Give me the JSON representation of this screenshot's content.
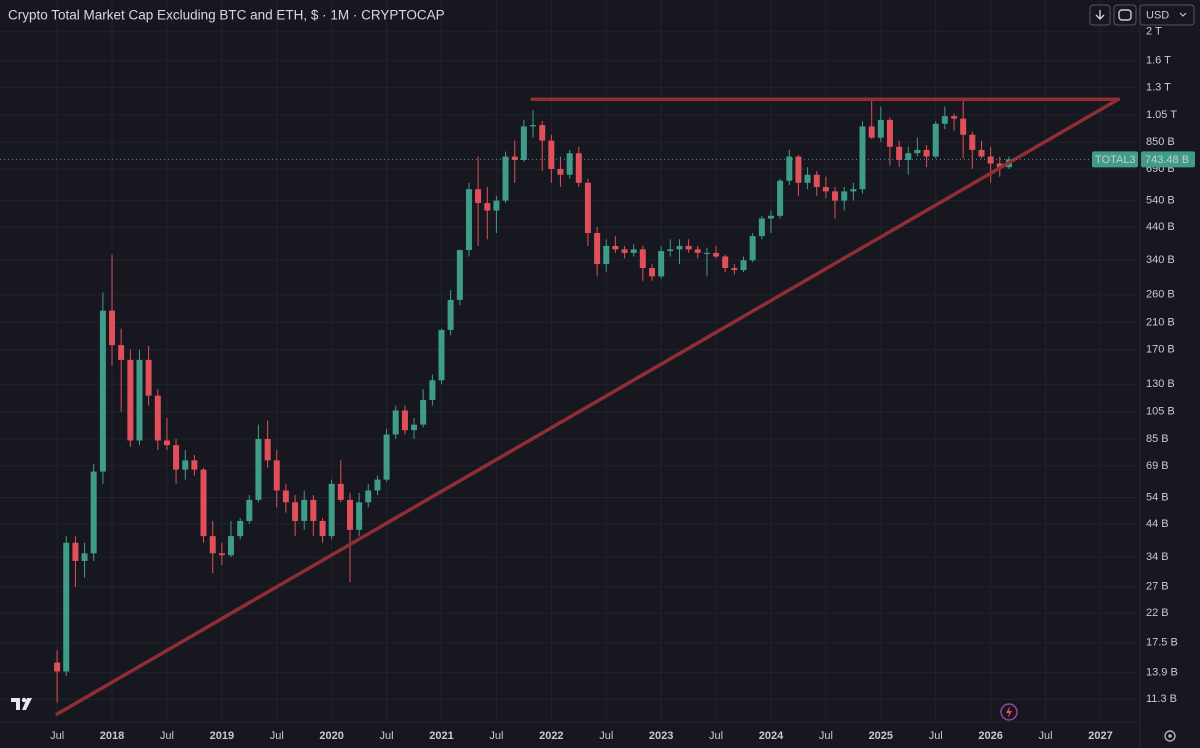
{
  "chart_data": {
    "type": "candlestick",
    "title": "Crypto Total Market Cap Excluding BTC and ETH, $ · 1M · CRYPTOCAP",
    "currency": "USD",
    "symbol": "TOTAL3",
    "last_price": {
      "value": 743.48,
      "label": "743.48 B"
    },
    "log_scale": true,
    "grid": true,
    "up_color": "#3f9c88",
    "down_color": "#e0505a",
    "trendline_color": "#8f2f34",
    "x": [
      2017.5,
      2017.583,
      2017.667,
      2017.75,
      2017.833,
      2017.917,
      2018,
      2018.083,
      2018.167,
      2018.25,
      2018.333,
      2018.417,
      2018.5,
      2018.583,
      2018.667,
      2018.75,
      2018.833,
      2018.917,
      2019,
      2019.083,
      2019.167,
      2019.25,
      2019.333,
      2019.417,
      2019.5,
      2019.583,
      2019.667,
      2019.75,
      2019.833,
      2019.917,
      2020,
      2020.083,
      2020.167,
      2020.25,
      2020.333,
      2020.417,
      2020.5,
      2020.583,
      2020.667,
      2020.75,
      2020.833,
      2020.917,
      2021,
      2021.083,
      2021.167,
      2021.25,
      2021.333,
      2021.417,
      2021.5,
      2021.583,
      2021.667,
      2021.75,
      2021.833,
      2021.917,
      2022,
      2022.083,
      2022.167,
      2022.25,
      2022.333,
      2022.417,
      2022.5,
      2022.583,
      2022.667,
      2022.75,
      2022.833,
      2022.917,
      2023,
      2023.083,
      2023.167,
      2023.25,
      2023.333,
      2023.417,
      2023.5,
      2023.583,
      2023.667,
      2023.75,
      2023.833,
      2023.917,
      2024,
      2024.083,
      2024.167,
      2024.25,
      2024.333,
      2024.417,
      2024.5,
      2024.583,
      2024.667,
      2024.75,
      2024.833,
      2024.917,
      2025,
      2025.083,
      2025.167,
      2025.25,
      2025.333,
      2025.417,
      2025.5,
      2025.583,
      2025.667,
      2025.75,
      2025.833,
      2025.917,
      2026,
      2026.083,
      2026.167
    ],
    "open": [
      15,
      14,
      38,
      33,
      35,
      66,
      230,
      176,
      157,
      84,
      157,
      119,
      84,
      81,
      67,
      72,
      67,
      40,
      35,
      34.5,
      40,
      45,
      53,
      85,
      72,
      57,
      52,
      45,
      53,
      45,
      40,
      60,
      53,
      42,
      52,
      57,
      62,
      88,
      106,
      91,
      95,
      115,
      134,
      198,
      250,
      368,
      590,
      530,
      500,
      540,
      760,
      740,
      960,
      970,
      860,
      690,
      660,
      780,
      620,
      420,
      330,
      380,
      370,
      360,
      370,
      320,
      300,
      365,
      370,
      380,
      370,
      360,
      360,
      350,
      320,
      315,
      340,
      410,
      470,
      480,
      630,
      760,
      620,
      660,
      600,
      580,
      540,
      580,
      590,
      960,
      880,
      1010,
      820,
      740,
      780,
      800,
      760,
      980,
      1040,
      1020,
      900,
      800,
      760,
      720,
      700
    ],
    "high": [
      16.5,
      40,
      40,
      38,
      70,
      265,
      355,
      200,
      170,
      170,
      175,
      125,
      100,
      85,
      78,
      75,
      68,
      45,
      38,
      45,
      46,
      55,
      95,
      98,
      78,
      60,
      55,
      57,
      55,
      46,
      62,
      72,
      56,
      56,
      60,
      64,
      92,
      110,
      110,
      100,
      125,
      140,
      200,
      270,
      370,
      620,
      760,
      600,
      560,
      790,
      860,
      1010,
      1090,
      1000,
      900,
      760,
      800,
      820,
      640,
      440,
      400,
      410,
      380,
      385,
      380,
      330,
      380,
      400,
      400,
      400,
      380,
      375,
      380,
      355,
      330,
      350,
      420,
      480,
      500,
      640,
      800,
      770,
      700,
      680,
      650,
      600,
      600,
      620,
      1000,
      1180,
      1120,
      1030,
      860,
      820,
      880,
      830,
      1000,
      1120,
      1060,
      1200,
      920,
      860,
      820,
      760,
      760
    ],
    "low": [
      11,
      13.5,
      27,
      29,
      33,
      60,
      150,
      105,
      80,
      81,
      110,
      78,
      78,
      60,
      62,
      64,
      38,
      30,
      32,
      34,
      39,
      44,
      52,
      68,
      50,
      48,
      40,
      42,
      40,
      38,
      39,
      52,
      28,
      40,
      50,
      55,
      61,
      85,
      88,
      85,
      93,
      110,
      130,
      190,
      240,
      350,
      380,
      400,
      420,
      530,
      620,
      730,
      880,
      680,
      620,
      600,
      640,
      600,
      380,
      300,
      310,
      360,
      345,
      350,
      290,
      290,
      295,
      350,
      330,
      360,
      345,
      300,
      345,
      310,
      305,
      310,
      335,
      400,
      420,
      470,
      610,
      560,
      590,
      560,
      550,
      470,
      500,
      540,
      570,
      870,
      850,
      710,
      700,
      660,
      760,
      700,
      750,
      940,
      930,
      750,
      690,
      750,
      620,
      650,
      690
    ],
    "close": [
      14,
      38,
      33,
      35,
      66,
      230,
      176,
      157,
      84,
      157,
      119,
      84,
      81,
      67,
      72,
      67,
      40,
      35,
      34.5,
      40,
      45,
      53,
      85,
      72,
      57,
      52,
      45,
      53,
      45,
      40,
      60,
      53,
      42,
      52,
      57,
      62,
      88,
      106,
      91,
      95,
      115,
      134,
      198,
      250,
      368,
      590,
      530,
      500,
      540,
      760,
      740,
      960,
      970,
      860,
      690,
      660,
      780,
      620,
      420,
      330,
      380,
      370,
      360,
      370,
      320,
      300,
      365,
      370,
      380,
      370,
      360,
      360,
      350,
      320,
      315,
      340,
      410,
      470,
      480,
      630,
      760,
      620,
      660,
      600,
      580,
      540,
      580,
      590,
      960,
      880,
      1010,
      820,
      740,
      780,
      800,
      760,
      980,
      1040,
      1020,
      900,
      800,
      760,
      720,
      700,
      743.48
    ],
    "trendlines": [
      {
        "x": [
          2021.826,
          2027.163
        ],
        "y": [
          1185,
          1185
        ]
      },
      {
        "x": [
          2017.5,
          2027.163
        ],
        "y": [
          10.06,
          1185
        ]
      }
    ],
    "xlim": [
      2016.98,
      2027.36
    ],
    "ylim": [
      9.46,
      2560
    ],
    "xticks": [
      {
        "value": 2017.5,
        "label": "Jul"
      },
      2018,
      {
        "value": 2018.5,
        "label": "Jul"
      },
      2019,
      {
        "value": 2019.5,
        "label": "Jul"
      },
      2020,
      {
        "value": 2020.5,
        "label": "Jul"
      },
      2021,
      {
        "value": 2021.5,
        "label": "Jul"
      },
      2022,
      {
        "value": 2022.5,
        "label": "Jul"
      },
      2023,
      {
        "value": 2023.5,
        "label": "Jul"
      },
      2024,
      {
        "value": 2024.5,
        "label": "Jul"
      },
      2025,
      {
        "value": 2025.5,
        "label": "Jul"
      },
      2026,
      {
        "value": 2026.5,
        "label": "Jul"
      },
      2027
    ],
    "yticks": [
      {
        "value": 2000,
        "label": "2 T"
      },
      {
        "value": 1600,
        "label": "1.6 T"
      },
      {
        "value": 1300,
        "label": "1.3 T"
      },
      {
        "value": 1050,
        "label": "1.05 T"
      },
      {
        "value": 850,
        "label": "850 B"
      },
      {
        "value": 690,
        "label": "690 B"
      },
      {
        "value": 540,
        "label": "540 B"
      },
      {
        "value": 440,
        "label": "440 B"
      },
      {
        "value": 340,
        "label": "340 B"
      },
      {
        "value": 260,
        "label": "260 B"
      },
      {
        "value": 210,
        "label": "210 B"
      },
      {
        "value": 170,
        "label": "170 B"
      },
      {
        "value": 130,
        "label": "130 B"
      },
      {
        "value": 105,
        "label": "105 B"
      },
      {
        "value": 85,
        "label": "85 B"
      },
      {
        "value": 69,
        "label": "69 B"
      },
      {
        "value": 54,
        "label": "54 B"
      },
      {
        "value": 44,
        "label": "44 B"
      },
      {
        "value": 34,
        "label": "34 B"
      },
      {
        "value": 27,
        "label": "27 B"
      },
      {
        "value": 22,
        "label": "22 B"
      },
      {
        "value": 17.5,
        "label": "17.5 B"
      },
      {
        "value": 13.9,
        "label": "13.9 B"
      },
      {
        "value": 11.3,
        "label": "11.3 B"
      }
    ]
  }
}
